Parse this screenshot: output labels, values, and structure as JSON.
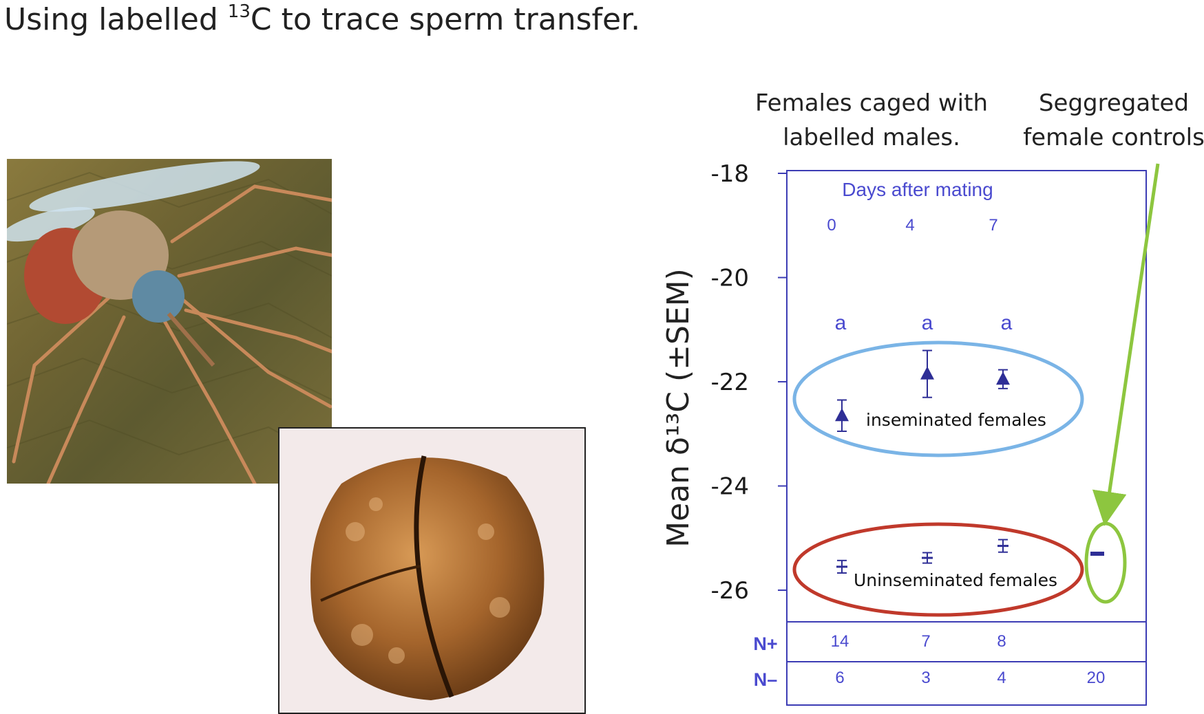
{
  "slide": {
    "title_prefix": "Using labelled ",
    "title_sup": "13",
    "title_suffix": "C to trace sperm transfer."
  },
  "annotations": {
    "group_caged_line1": "Females caged with",
    "group_caged_line2": "labelled males.",
    "group_control_line1": "Seggregated",
    "group_control_line2": "female controls"
  },
  "colors": {
    "axis": "#3c3cb4",
    "markers": "#2e2e96",
    "inseminated_ellipse": "#7ab4e6",
    "uninseminated_ellipse": "#c0392b",
    "control_ellipse_and_arrow": "#8dc63f"
  },
  "chart_data": {
    "type": "scatter",
    "ylabel": "Mean δ¹³C (±SEM)",
    "ylim": [
      -26.5,
      -18
    ],
    "yticks": [
      -18,
      -20,
      -22,
      -24,
      -26
    ],
    "inner_title": "Days after mating",
    "day_labels": [
      "0",
      "4",
      "7"
    ],
    "significance_letters": [
      "a",
      "a",
      "a"
    ],
    "series": [
      {
        "name": "inseminated females",
        "marker": "triangle",
        "points": [
          {
            "day": "0",
            "y": -22.65,
            "err": 0.3
          },
          {
            "day": "4",
            "y": -21.85,
            "err": 0.45
          },
          {
            "day": "7",
            "y": -21.95,
            "err": 0.18
          }
        ]
      },
      {
        "name": "Uninseminated females",
        "marker": "bar",
        "points": [
          {
            "day": "0",
            "y": -25.55,
            "err": 0.12
          },
          {
            "day": "4",
            "y": -25.38,
            "err": 0.1
          },
          {
            "day": "7",
            "y": -25.15,
            "err": 0.12
          }
        ]
      },
      {
        "name": "control",
        "marker": "dash",
        "points": [
          {
            "day": "control",
            "y": -25.3,
            "err": 0.0
          }
        ]
      }
    ],
    "sample_sizes": {
      "n_plus_label": "N+",
      "n_minus_label": "N–",
      "n_plus": [
        "14",
        "7",
        "8",
        ""
      ],
      "n_minus": [
        "6",
        "3",
        "4",
        "20"
      ]
    }
  }
}
